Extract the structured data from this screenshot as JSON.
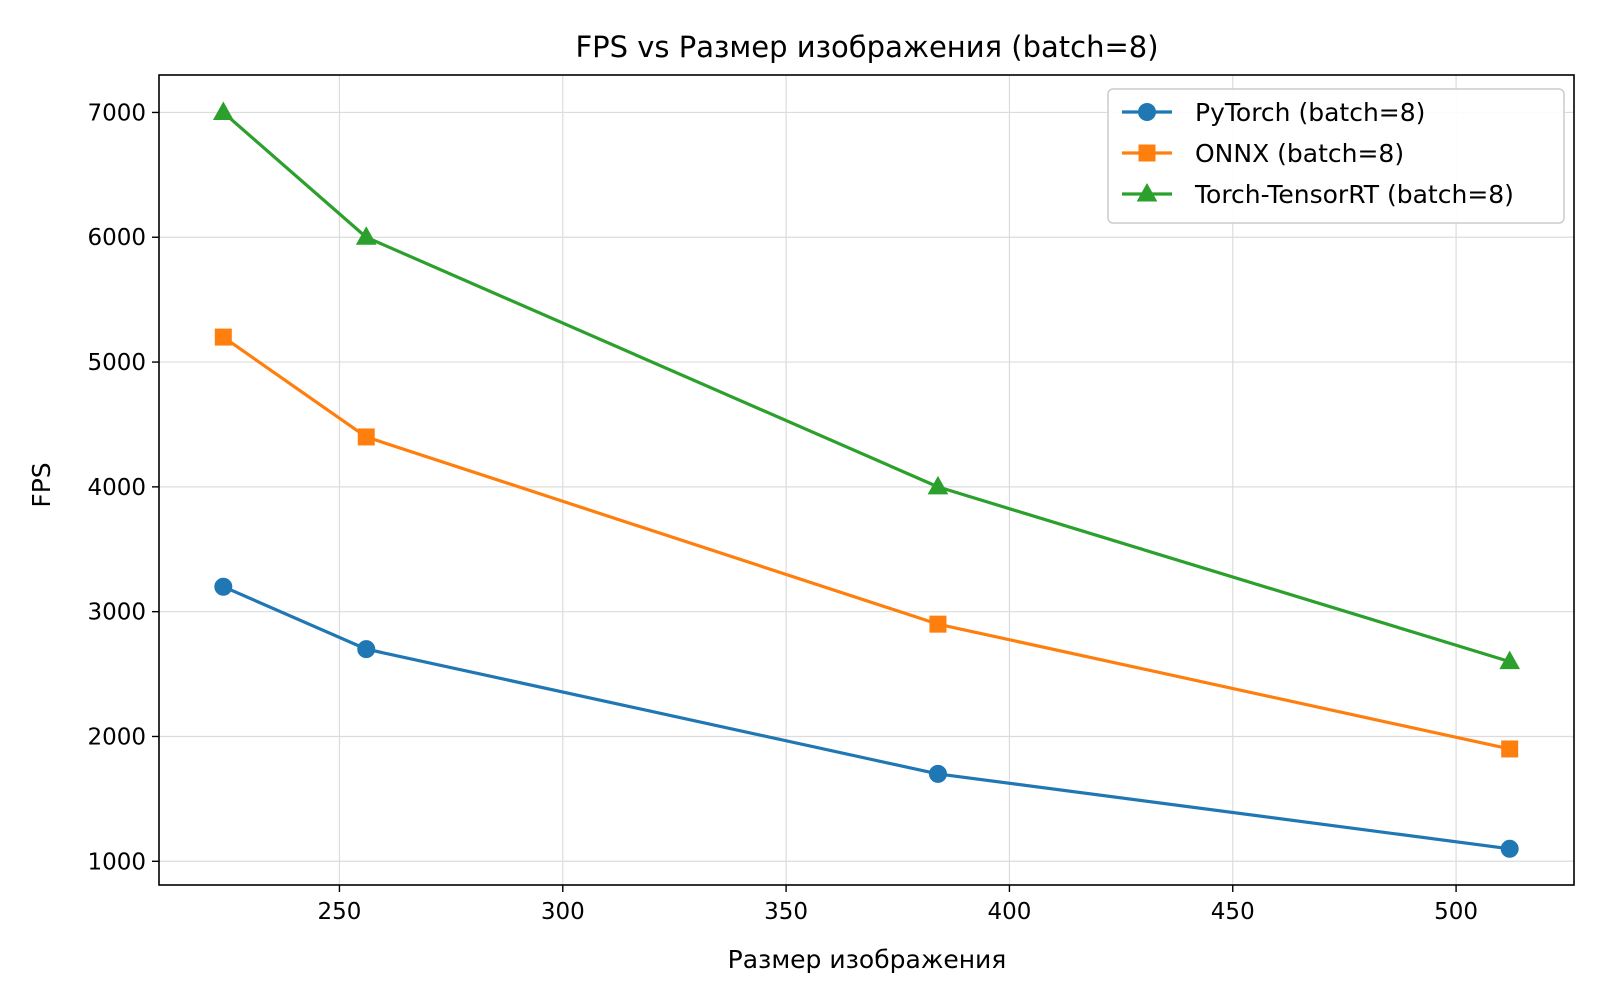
{
  "chart_data": {
    "type": "line",
    "title": "FPS vs Размер изображения (batch=8)",
    "xlabel": "Размер изображения",
    "ylabel": "FPS",
    "x": [
      224,
      256,
      384,
      512
    ],
    "xlim": [
      209.6,
      526.4
    ],
    "ylim": [
      810,
      7300
    ],
    "xticks": [
      250,
      300,
      350,
      400,
      450,
      500
    ],
    "yticks": [
      1000,
      2000,
      3000,
      4000,
      5000,
      6000,
      7000
    ],
    "grid": true,
    "legend_position": "top-right",
    "series": [
      {
        "name": "PyTorch (batch=8)",
        "values": [
          3200,
          2700,
          1700,
          1100
        ],
        "color": "#1f77b4",
        "marker": "circle"
      },
      {
        "name": "ONNX (batch=8)",
        "values": [
          5200,
          4400,
          2900,
          1900
        ],
        "color": "#ff7f0e",
        "marker": "square"
      },
      {
        "name": "Torch-TensorRT (batch=8)",
        "values": [
          7000,
          6000,
          4000,
          2600
        ],
        "color": "#2ca02c",
        "marker": "triangle"
      }
    ]
  }
}
